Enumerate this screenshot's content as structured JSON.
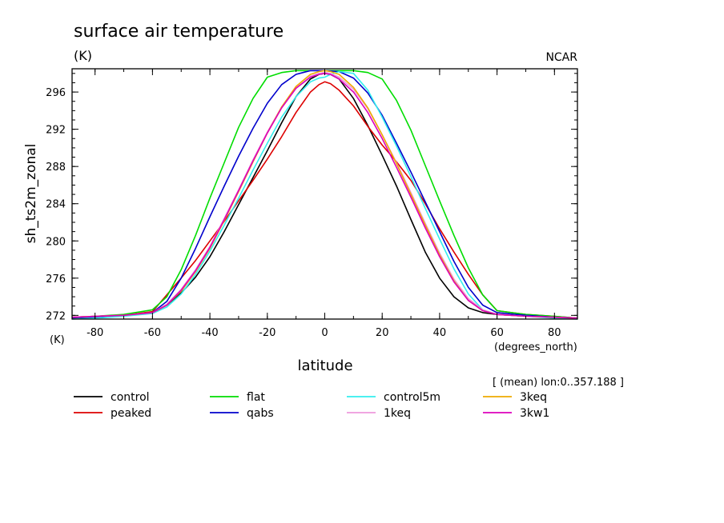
{
  "chart_data": {
    "type": "line",
    "title": "surface air temperature",
    "units_label": "(K)",
    "credit": "NCAR",
    "xlabel": "latitude",
    "xunits": "(degrees_north)",
    "ylabel": "sh_ts2m_zonal",
    "yunits": "(K)",
    "subtitle": "[ (mean) lon:0..357.188 ]",
    "xlim": [
      -88,
      88
    ],
    "ylim": [
      271.6,
      298.5
    ],
    "x_ticks": [
      -80,
      -60,
      -40,
      -20,
      0,
      20,
      40,
      60,
      80
    ],
    "x_tick_labels": [
      "-80",
      "-60",
      "-40",
      "-20",
      "0",
      "20",
      "40",
      "60",
      "80"
    ],
    "y_ticks": [
      272,
      276,
      280,
      284,
      288,
      292,
      296
    ],
    "y_tick_labels": [
      "272",
      "276",
      "280",
      "284",
      "288",
      "292",
      "296"
    ],
    "x_minor_step": 10,
    "y_minor_step": 1,
    "grid": false,
    "legend_position": "bottom",
    "series": [
      {
        "name": "control",
        "color": "#000000",
        "x": [
          -88,
          -80,
          -70,
          -60,
          -55,
          -50,
          -45,
          -40,
          -35,
          -30,
          -25,
          -20,
          -15,
          -10,
          -5,
          -2,
          0,
          2,
          5,
          10,
          15,
          20,
          25,
          30,
          35,
          40,
          45,
          50,
          55,
          60,
          70,
          80,
          88
        ],
        "y": [
          271.8,
          271.9,
          272.0,
          272.3,
          273.1,
          274.4,
          276.1,
          278.3,
          281.0,
          283.9,
          286.8,
          289.7,
          292.7,
          295.5,
          297.4,
          297.9,
          298.0,
          297.9,
          297.4,
          295.3,
          292.4,
          289.2,
          285.9,
          282.3,
          278.8,
          276.0,
          274.0,
          272.8,
          272.3,
          272.1,
          271.9,
          271.8,
          271.7
        ]
      },
      {
        "name": "peaked",
        "color": "#dd0000",
        "x": [
          -88,
          -80,
          -70,
          -60,
          -55,
          -50,
          -45,
          -40,
          -35,
          -30,
          -25,
          -20,
          -15,
          -10,
          -5,
          -2,
          0,
          2,
          5,
          10,
          15,
          20,
          25,
          30,
          35,
          40,
          45,
          50,
          55,
          60,
          70,
          80,
          88
        ],
        "y": [
          271.7,
          271.9,
          272.0,
          272.4,
          274.2,
          276.0,
          277.9,
          280.0,
          282.1,
          284.3,
          286.5,
          288.8,
          291.2,
          293.8,
          296.0,
          296.8,
          297.1,
          296.9,
          296.2,
          294.5,
          292.3,
          290.3,
          288.5,
          286.5,
          284.0,
          281.3,
          278.8,
          276.4,
          274.2,
          272.5,
          272.1,
          271.9,
          271.7
        ]
      },
      {
        "name": "flat",
        "color": "#00dd00",
        "x": [
          -88,
          -80,
          -70,
          -60,
          -55,
          -50,
          -45,
          -40,
          -35,
          -30,
          -25,
          -20,
          -15,
          -10,
          -5,
          0,
          5,
          10,
          15,
          20,
          25,
          30,
          35,
          40,
          45,
          50,
          55,
          60,
          70,
          80,
          88
        ],
        "y": [
          271.8,
          271.9,
          272.1,
          272.6,
          274.0,
          276.9,
          280.6,
          284.6,
          288.4,
          292.2,
          295.3,
          297.6,
          298.1,
          298.3,
          298.3,
          298.3,
          298.3,
          298.3,
          298.1,
          297.4,
          295.1,
          291.9,
          288.1,
          284.3,
          280.6,
          277.1,
          274.2,
          272.5,
          272.1,
          271.9,
          271.7
        ]
      },
      {
        "name": "qabs",
        "color": "#0000cc",
        "x": [
          -88,
          -80,
          -70,
          -60,
          -55,
          -50,
          -45,
          -40,
          -35,
          -30,
          -25,
          -20,
          -15,
          -10,
          -5,
          0,
          5,
          10,
          15,
          20,
          25,
          30,
          35,
          40,
          45,
          50,
          55,
          60,
          70,
          80,
          88
        ],
        "y": [
          271.7,
          271.8,
          272.0,
          272.3,
          273.5,
          276.0,
          279.2,
          282.6,
          285.9,
          289.1,
          292.1,
          294.8,
          296.8,
          297.9,
          298.3,
          298.3,
          298.2,
          297.5,
          295.9,
          293.5,
          290.5,
          287.4,
          284.2,
          281.0,
          277.8,
          275.0,
          273.1,
          272.3,
          272.0,
          271.8,
          271.7
        ]
      },
      {
        "name": "control5m",
        "color": "#33eeee",
        "x": [
          -88,
          -80,
          -70,
          -60,
          -55,
          -50,
          -45,
          -40,
          -35,
          -30,
          -25,
          -20,
          -15,
          -10,
          -5,
          -2,
          0,
          2,
          5,
          10,
          15,
          20,
          25,
          30,
          35,
          40,
          45,
          50,
          55,
          60,
          70,
          80,
          88
        ],
        "y": [
          271.6,
          271.7,
          271.9,
          272.2,
          272.9,
          274.3,
          276.4,
          278.9,
          281.7,
          284.6,
          287.6,
          290.5,
          293.3,
          295.5,
          297.1,
          297.5,
          297.6,
          297.9,
          298.2,
          298.0,
          296.2,
          293.3,
          290.2,
          286.9,
          283.5,
          280.2,
          277.0,
          274.3,
          272.6,
          272.1,
          271.9,
          271.7,
          271.6
        ]
      },
      {
        "name": "1keq",
        "color": "#ee99dd",
        "x": [
          -88,
          -80,
          -70,
          -60,
          -55,
          -50,
          -45,
          -40,
          -35,
          -30,
          -25,
          -20,
          -15,
          -10,
          -5,
          -2,
          0,
          2,
          5,
          10,
          15,
          20,
          25,
          30,
          35,
          40,
          45,
          50,
          55,
          60,
          70,
          80,
          88
        ],
        "y": [
          271.8,
          271.9,
          272.0,
          272.3,
          273.2,
          274.8,
          276.9,
          279.4,
          282.4,
          285.5,
          288.7,
          291.7,
          294.4,
          296.4,
          297.7,
          298.0,
          298.1,
          298.0,
          297.6,
          296.3,
          294.2,
          291.4,
          288.4,
          285.2,
          281.9,
          278.7,
          275.9,
          273.8,
          272.6,
          272.1,
          271.9,
          271.8,
          271.7
        ]
      },
      {
        "name": "3keq",
        "color": "#eeaa00",
        "x": [
          -88,
          -80,
          -70,
          -60,
          -55,
          -50,
          -45,
          -40,
          -35,
          -30,
          -25,
          -20,
          -15,
          -10,
          -5,
          -2,
          0,
          2,
          5,
          10,
          15,
          20,
          25,
          30,
          35,
          40,
          45,
          50,
          55,
          60,
          70,
          80,
          88
        ],
        "y": [
          271.8,
          271.9,
          272.0,
          272.3,
          273.1,
          274.6,
          276.7,
          279.2,
          282.2,
          285.3,
          288.5,
          291.6,
          294.4,
          296.6,
          297.9,
          298.2,
          298.3,
          298.2,
          297.9,
          296.5,
          294.3,
          291.4,
          288.3,
          285.0,
          281.7,
          278.5,
          275.7,
          273.6,
          272.5,
          272.1,
          271.9,
          271.8,
          271.7
        ]
      },
      {
        "name": "3kw1",
        "color": "#dd00bb",
        "x": [
          -88,
          -80,
          -70,
          -60,
          -55,
          -50,
          -45,
          -40,
          -35,
          -30,
          -25,
          -20,
          -15,
          -10,
          -5,
          -2,
          0,
          2,
          5,
          10,
          15,
          20,
          25,
          30,
          35,
          40,
          45,
          50,
          55,
          60,
          70,
          80,
          88
        ],
        "y": [
          271.8,
          271.9,
          272.0,
          272.3,
          273.1,
          274.7,
          276.8,
          279.3,
          282.3,
          285.4,
          288.6,
          291.6,
          294.3,
          296.4,
          297.6,
          297.9,
          298.0,
          297.9,
          297.4,
          296.0,
          293.8,
          291.0,
          287.9,
          284.7,
          281.4,
          278.3,
          275.6,
          273.6,
          272.5,
          272.1,
          271.9,
          271.8,
          271.7
        ]
      }
    ]
  }
}
